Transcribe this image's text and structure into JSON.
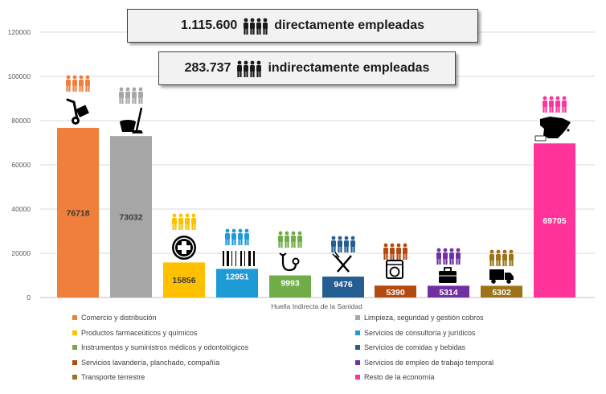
{
  "banner_direct": {
    "number": "1.115.600",
    "text": "directamente empleadas"
  },
  "banner_indirect": {
    "number": "283.737",
    "text": "indirectamente empleadas"
  },
  "chart_data": {
    "type": "bar",
    "xlabel": "Huella Indirecta de la Sanidad",
    "ylabel": "",
    "ylim": [
      0,
      120000
    ],
    "yticks": [
      "0",
      "20000",
      "40000",
      "60000",
      "80000",
      "100000",
      "120000"
    ],
    "grid": true,
    "legend_position": "bottom",
    "categories": [
      "Comercio y distribución",
      "Limpieza, seguridad y gestión cobros",
      "Productos farmaceúticos y químicos",
      "Servicios de consultoría y jurídicos",
      "Instrumentos y suministros médicos y odontológicos",
      "Servicios de comidas y bebidas",
      "Servicios lavandería, planchado, compañía",
      "Servicios de empleo de trabajo temporal",
      "Transporte terrestre",
      "Resto de la economía"
    ],
    "values": [
      76718,
      73032,
      15856,
      12951,
      9993,
      9476,
      5390,
      5314,
      5302,
      69705
    ],
    "value_labels": [
      "76718",
      "73032",
      "15856",
      "12951",
      "9993",
      "9476",
      "5390",
      "5314",
      "5302",
      "69705"
    ],
    "colors": [
      "#f07f3c",
      "#a6a6a6",
      "#ffc000",
      "#1e9ad6",
      "#70ad47",
      "#255e91",
      "#b54a10",
      "#7030a0",
      "#9e7318",
      "#ff3399"
    ],
    "label_colors": [
      "#3a3a3a",
      "#3a3a3a",
      "#3a3a3a",
      "#ffffff",
      "#ffffff",
      "#ffffff",
      "#ffffff",
      "#ffffff",
      "#ffffff",
      "#ffffff"
    ],
    "icons": [
      "hand-truck-icon",
      "cleaning-bucket-icon",
      "medical-cross-icon",
      "barcode-icon",
      "stethoscope-icon",
      "fork-knife-icon",
      "washing-machine-icon",
      "briefcase-icon",
      "delivery-truck-icon",
      "spain-map-icon"
    ]
  }
}
